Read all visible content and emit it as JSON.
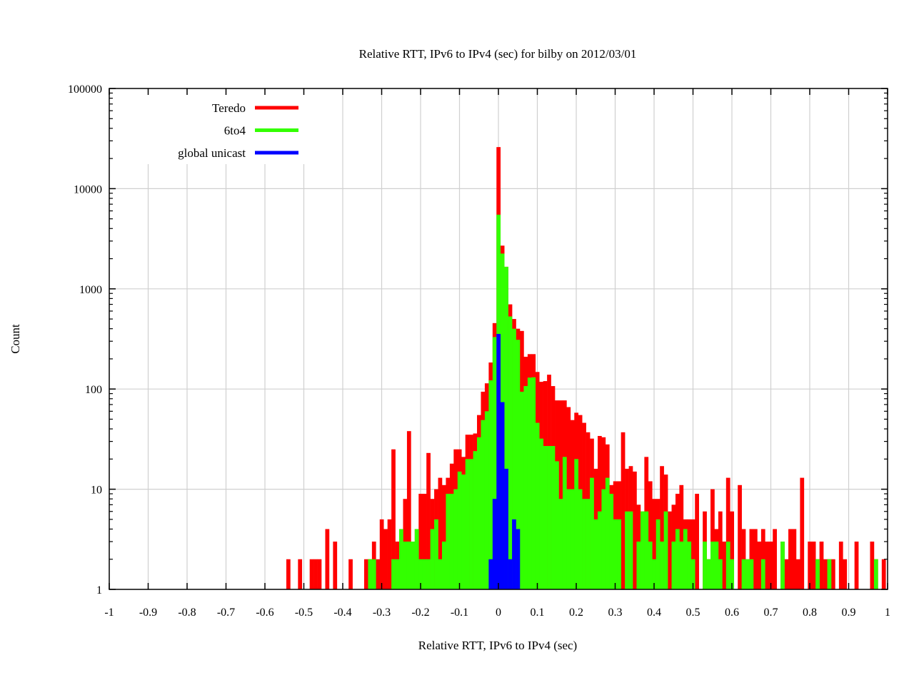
{
  "chart_data": {
    "type": "bar",
    "title": "Relative RTT, IPv6 to IPv4 (sec) for bilby on 2012/03/01",
    "xlabel": "Relative RTT, IPv6 to IPv4 (sec)",
    "ylabel": "Count",
    "xlim": [
      -1,
      1
    ],
    "ylim": [
      1,
      100000
    ],
    "y_scale": "log",
    "grid": true,
    "legend_position": "top-left",
    "bin_width": 0.01,
    "x_ticks": [
      "-1",
      "-0.9",
      "-0.8",
      "-0.7",
      "-0.6",
      "-0.5",
      "-0.4",
      "-0.3",
      "-0.2",
      "-0.1",
      "0",
      "0.1",
      "0.2",
      "0.3",
      "0.4",
      "0.5",
      "0.6",
      "0.7",
      "0.8",
      "0.9",
      "1"
    ],
    "y_ticks": [
      "1",
      "10",
      "100",
      "1000",
      "10000",
      "100000"
    ],
    "x": [
      -0.54,
      -0.53,
      -0.52,
      -0.51,
      -0.5,
      -0.49,
      -0.48,
      -0.47,
      -0.46,
      -0.45,
      -0.44,
      -0.43,
      -0.42,
      -0.41,
      -0.4,
      -0.39,
      -0.38,
      -0.37,
      -0.36,
      -0.35,
      -0.34,
      -0.33,
      -0.32,
      -0.31,
      -0.3,
      -0.29,
      -0.28,
      -0.27,
      -0.26,
      -0.25,
      -0.24,
      -0.23,
      -0.22,
      -0.21,
      -0.2,
      -0.19,
      -0.18,
      -0.17,
      -0.16,
      -0.15,
      -0.14,
      -0.13,
      -0.12,
      -0.11,
      -0.1,
      -0.09,
      -0.08,
      -0.07,
      -0.06,
      -0.05,
      -0.04,
      -0.03,
      -0.02,
      -0.01,
      0.0,
      0.01,
      0.02,
      0.03,
      0.04,
      0.05,
      0.06,
      0.07,
      0.08,
      0.09,
      0.1,
      0.11,
      0.12,
      0.13,
      0.14,
      0.15,
      0.16,
      0.17,
      0.18,
      0.19,
      0.2,
      0.21,
      0.22,
      0.23,
      0.24,
      0.25,
      0.26,
      0.27,
      0.28,
      0.29,
      0.3,
      0.31,
      0.32,
      0.33,
      0.34,
      0.35,
      0.36,
      0.37,
      0.38,
      0.39,
      0.4,
      0.41,
      0.42,
      0.43,
      0.44,
      0.45,
      0.46,
      0.47,
      0.48,
      0.49,
      0.5,
      0.51,
      0.52,
      0.53,
      0.54,
      0.55,
      0.56,
      0.57,
      0.58,
      0.59,
      0.6,
      0.61,
      0.62,
      0.63,
      0.64,
      0.65,
      0.66,
      0.67,
      0.68,
      0.69,
      0.7,
      0.71,
      0.72,
      0.73,
      0.74,
      0.75,
      0.76,
      0.77,
      0.78,
      0.79,
      0.8,
      0.81,
      0.82,
      0.83,
      0.84,
      0.85,
      0.86,
      0.87,
      0.88,
      0.89,
      0.9,
      0.91,
      0.92,
      0.93,
      0.94,
      0.95,
      0.96,
      0.97,
      0.98,
      0.99
    ],
    "series": [
      {
        "name": "Teredo",
        "color": "#ff0000",
        "values": [
          2,
          0,
          0,
          2,
          0,
          0,
          2,
          2,
          2,
          0,
          4,
          0,
          3,
          0,
          0,
          0,
          2,
          0,
          0,
          0,
          2,
          2,
          3,
          2,
          5,
          4,
          5,
          25,
          3,
          4,
          8,
          38,
          3,
          4,
          9,
          9,
          23,
          8,
          10,
          13,
          11,
          13,
          18,
          25,
          25,
          21,
          35,
          35,
          36,
          55,
          94,
          114,
          184,
          455,
          26000,
          2700,
          1660,
          700,
          500,
          400,
          380,
          210,
          223,
          223,
          148,
          118,
          120,
          139,
          107,
          77,
          77,
          77,
          66,
          49,
          58,
          55,
          46,
          37,
          32,
          16,
          34,
          33,
          28,
          11,
          12,
          12,
          37,
          16,
          17,
          15,
          7,
          6,
          21,
          12,
          8,
          8,
          17,
          14,
          6,
          7,
          9,
          11,
          5,
          5,
          5,
          9,
          0,
          6,
          2,
          10,
          4,
          6,
          3,
          13,
          6,
          0,
          11,
          4,
          2,
          4,
          4,
          3,
          4,
          3,
          3,
          4,
          0,
          3,
          2,
          4,
          4,
          2,
          13,
          0,
          3,
          3,
          2,
          3,
          2,
          2,
          2,
          0,
          3,
          2,
          0,
          0,
          3,
          0,
          0,
          0,
          3,
          2,
          0,
          2
        ]
      },
      {
        "name": "6to4",
        "color": "#33ff00",
        "values": [
          0,
          0,
          0,
          0,
          0,
          0,
          0,
          0,
          0,
          0,
          0,
          0,
          0,
          0,
          0,
          0,
          0,
          0,
          0,
          0,
          0,
          2,
          2,
          0,
          0,
          0,
          0,
          2,
          2,
          4,
          3,
          3,
          3,
          4,
          2,
          2,
          2,
          4,
          5,
          2,
          3,
          9,
          9,
          10,
          15,
          14,
          20,
          20,
          24,
          33,
          49,
          60,
          122,
          330,
          5500,
          2250,
          1660,
          530,
          400,
          310,
          94,
          107,
          130,
          131,
          46,
          32,
          27,
          27,
          27,
          19,
          8,
          21,
          10,
          10,
          20,
          10,
          8,
          8,
          13,
          5,
          6,
          10,
          13,
          9,
          5,
          5,
          0,
          6,
          6,
          0,
          3,
          6,
          6,
          3,
          2,
          5,
          3,
          6,
          0,
          3,
          4,
          3,
          4,
          3,
          2,
          0,
          0,
          3,
          2,
          3,
          3,
          2,
          0,
          3,
          2,
          0,
          0,
          2,
          2,
          2,
          0,
          0,
          2,
          0,
          0,
          0,
          0,
          3,
          0,
          0,
          0,
          0,
          0,
          0,
          0,
          0,
          2,
          0,
          0,
          2,
          0,
          0,
          0,
          0,
          0,
          0,
          0,
          0,
          0,
          0,
          0,
          2,
          0,
          0
        ]
      },
      {
        "name": "global unicast",
        "color": "#0000ff",
        "values": [
          0,
          0,
          0,
          0,
          0,
          0,
          0,
          0,
          0,
          0,
          0,
          0,
          0,
          0,
          0,
          0,
          0,
          0,
          0,
          0,
          0,
          0,
          0,
          0,
          0,
          0,
          0,
          0,
          0,
          0,
          0,
          0,
          0,
          0,
          0,
          0,
          0,
          0,
          0,
          0,
          0,
          0,
          0,
          0,
          0,
          0,
          0,
          0,
          0,
          0,
          0,
          0,
          2,
          8,
          355,
          74,
          16,
          2,
          5,
          4,
          0,
          0,
          0,
          0,
          0,
          0,
          0,
          0,
          0,
          0,
          0,
          0,
          0,
          0,
          0,
          0,
          0,
          0,
          0,
          0,
          0,
          0,
          0,
          0,
          0,
          0,
          0,
          0,
          0,
          0,
          0,
          0,
          0,
          0,
          0,
          0,
          0,
          0,
          0,
          0,
          0,
          0,
          0,
          0,
          0,
          0,
          0,
          0,
          0,
          0,
          0,
          0,
          0,
          0,
          0,
          0,
          0,
          0,
          0,
          0,
          0,
          0,
          0,
          0,
          0,
          0,
          0,
          0,
          0,
          0,
          0,
          0,
          0,
          0,
          0,
          0,
          0,
          0,
          0,
          0,
          0,
          0,
          0,
          0,
          0,
          0,
          0,
          0,
          0,
          0,
          0,
          0,
          0,
          0
        ]
      }
    ]
  }
}
